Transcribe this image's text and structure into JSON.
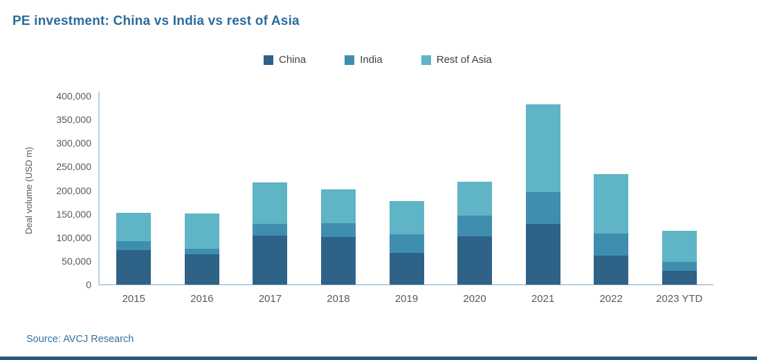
{
  "title": "PE investment: China vs India vs rest of Asia",
  "source": "Source: AVCJ Research",
  "colors": {
    "title_text": "#2b6c99",
    "source_text": "#34719f",
    "tick_text": "#58595b",
    "axis_line": "#b9cfdf",
    "footer_bar": "#27597b",
    "china": "#2f6287",
    "india": "#3f8eb0",
    "rest_of_asia": "#5fb4c5"
  },
  "chart_data": {
    "type": "bar",
    "stacked": true,
    "title": "PE investment: China vs India vs rest of Asia",
    "xlabel": "",
    "ylabel": "Deal volume (USD m)",
    "ylim": [
      0,
      400000
    ],
    "ytick_step": 50000,
    "grid": false,
    "legend_position": "top-center",
    "categories": [
      "2015",
      "2016",
      "2017",
      "2018",
      "2019",
      "2020",
      "2021",
      "2022",
      "2023 YTD"
    ],
    "series": [
      {
        "name": "China",
        "color": "#2f6287",
        "values": [
          74000,
          64000,
          104000,
          101000,
          68000,
          102000,
          129000,
          62000,
          30000
        ]
      },
      {
        "name": "India",
        "color": "#3f8eb0",
        "values": [
          18000,
          12000,
          25000,
          30000,
          39000,
          45000,
          67000,
          46000,
          18000
        ]
      },
      {
        "name": "Rest of Asia",
        "color": "#5fb4c5",
        "values": [
          61000,
          75000,
          88000,
          71000,
          70000,
          71000,
          187000,
          126000,
          67000
        ]
      }
    ]
  }
}
